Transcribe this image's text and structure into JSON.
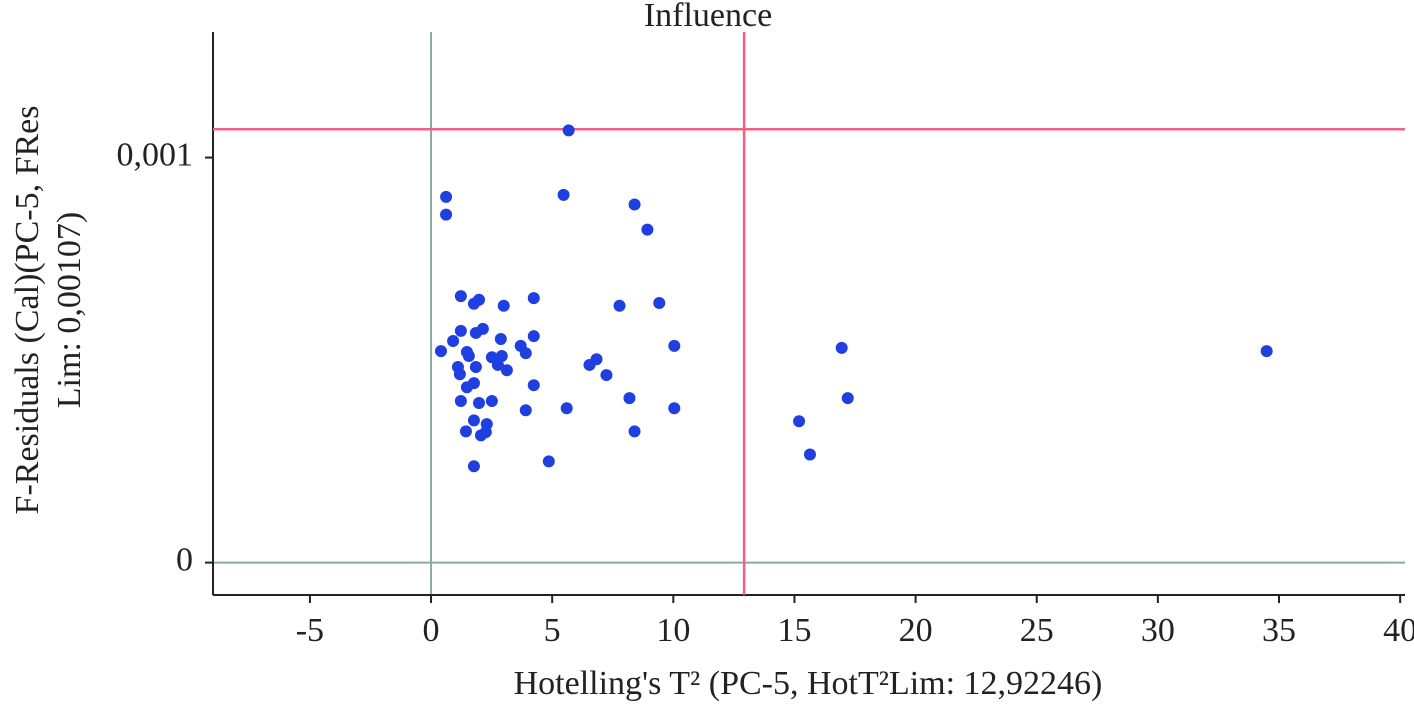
{
  "chart_data": {
    "type": "scatter",
    "title": "Influence",
    "x_label": "Hotelling's T² (PC-5, HotT²Lim: 12,92246)",
    "y_label": [
      "F-Residuals (Cal)(PC-5, FRes",
      "Lim: 0,00107)"
    ],
    "xlim": [
      -9,
      40.2
    ],
    "ylim": [
      -8e-05,
      0.00131
    ],
    "xticks": [
      -5,
      0,
      5,
      10,
      15,
      20,
      25,
      30,
      35,
      40
    ],
    "yticks": [
      0,
      {
        "value": 0.001,
        "label": "0,001"
      }
    ],
    "color": "#1f3fe0",
    "zero_line_color": "#8aa8a8",
    "hlines": [
      {
        "value": 0.00107,
        "color": "#f06080"
      }
    ],
    "vlines": [
      {
        "value": 12.92246,
        "color": "#f06080"
      }
    ],
    "x": [
      5.68,
      0.62,
      0.62,
      5.47,
      8.4,
      8.93,
      1.23,
      1.98,
      1.77,
      3.0,
      4.24,
      7.78,
      9.42,
      1.23,
      2.14,
      1.85,
      0.91,
      0.41,
      1.48,
      1.56,
      2.88,
      4.24,
      3.7,
      3.91,
      2.51,
      2.92,
      2.76,
      3.13,
      1.11,
      1.19,
      1.85,
      1.48,
      1.77,
      4.24,
      6.54,
      6.83,
      7.24,
      10.04,
      1.23,
      1.98,
      2.51,
      3.91,
      5.6,
      8.19,
      10.04,
      1.77,
      2.3,
      2.06,
      1.44,
      2.26,
      8.4,
      1.77,
      4.86,
      15.19,
      15.64,
      16.95,
      17.2,
      34.49
    ],
    "values": [
      0.001067,
      0.000903,
      0.000859,
      0.000908,
      0.000884,
      0.000822,
      0.000658,
      0.000649,
      0.000639,
      0.000634,
      0.000653,
      0.000634,
      0.000641,
      0.000572,
      0.000577,
      0.000567,
      0.000547,
      0.000522,
      0.00052,
      0.00051,
      0.000552,
      0.000559,
      0.000535,
      0.000517,
      0.000507,
      0.00051,
      0.000488,
      0.000475,
      0.000483,
      0.000465,
      0.000483,
      0.000433,
      0.000443,
      0.000438,
      0.000488,
      0.000502,
      0.000463,
      0.000535,
      0.000399,
      0.000394,
      0.000399,
      0.000376,
      0.000381,
      0.000406,
      0.000381,
      0.000351,
      0.000342,
      0.000314,
      0.000324,
      0.000322,
      0.000324,
      0.000238,
      0.00025,
      0.000349,
      0.000267,
      0.00053,
      0.000406,
      0.000522
    ]
  }
}
